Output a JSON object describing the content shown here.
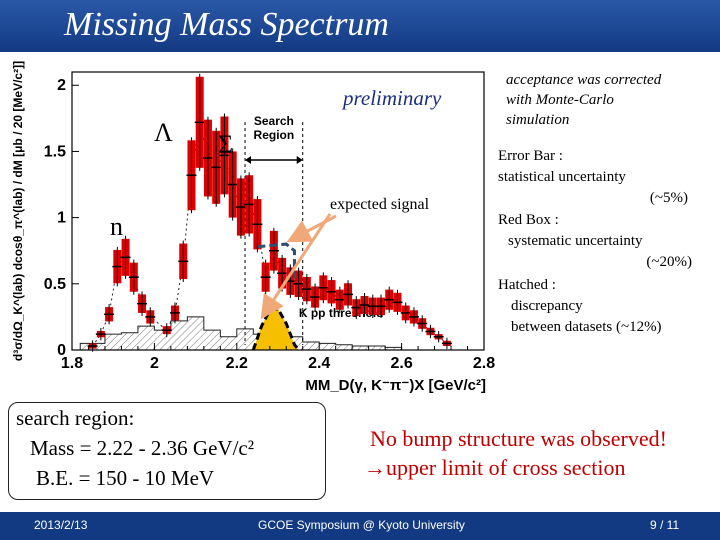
{
  "slide": {
    "title": "Missing Mass Spectrum",
    "footer": {
      "date": "2013/2/13",
      "event": "GCOE Symposium @ Kyoto University",
      "page": "9 / 11"
    }
  },
  "annotations": {
    "preliminary": "preliminary",
    "lambda": "Λ",
    "sigma": "Σ",
    "n": "n",
    "expected_signal": "expected signal",
    "acceptance": [
      "acceptance was corrected",
      "with Monte-Carlo",
      "simulation"
    ],
    "error_bar": [
      "Error Bar :",
      "statistical uncertainty",
      "(~5%)"
    ],
    "red_box": [
      "Red Box :",
      "systematic uncertainty",
      "(~20%)"
    ],
    "hatched": [
      "Hatched :",
      "discrepancy",
      "between datasets (~12%)"
    ]
  },
  "search_region": {
    "heading": "search region:",
    "mass": "Mass = 2.22 - 2.36 GeV/c²",
    "be": "B.E. = 150 - 10 MeV"
  },
  "conclusion": {
    "line1": "No bump structure was observed!",
    "line2": "upper limit of cross section",
    "arrow": "→"
  },
  "colors": {
    "title_bg": "#1f4b96",
    "data_red": "#dd0000",
    "signal_fill": "#f6c000",
    "systematic_box": "#2f4f6f",
    "arrow": "#f0a878",
    "conclusion": "#c00000"
  },
  "chart_data": {
    "type": "scatter",
    "title": "",
    "xlabel": "MM_D(γ, K⁻π⁻)X [GeV/c²]",
    "ylabel": "d³σ/dΩ_K^(lab) dcosθ_π^(lab) / dM [μb / 20 [MeV/c²]]",
    "xlim": [
      1.8,
      2.8
    ],
    "ylim": [
      0,
      2.1
    ],
    "x_ticks": [
      1.8,
      2.0,
      2.2,
      2.4,
      2.6,
      2.8
    ],
    "x_tick_labels": [
      "1.8",
      "2",
      "2.2",
      "2.4",
      "2.6",
      "2.8"
    ],
    "y_ticks": [
      0,
      0.5,
      1,
      1.5,
      2
    ],
    "y_tick_labels": [
      "0",
      "0.5",
      "1",
      "1.5",
      "2"
    ],
    "search_region": {
      "label": [
        "Search",
        "Region"
      ],
      "x_range": [
        2.22,
        2.36
      ]
    },
    "kpp_threshold": {
      "label": "K pp threshold",
      "x": 2.37
    },
    "series": [
      {
        "name": "data",
        "points": [
          {
            "x": 1.85,
            "y": 0.03
          },
          {
            "x": 1.87,
            "y": 0.12
          },
          {
            "x": 1.89,
            "y": 0.27
          },
          {
            "x": 1.91,
            "y": 0.63
          },
          {
            "x": 1.93,
            "y": 0.7
          },
          {
            "x": 1.95,
            "y": 0.55
          },
          {
            "x": 1.97,
            "y": 0.35
          },
          {
            "x": 1.99,
            "y": 0.25
          },
          {
            "x": 2.03,
            "y": 0.15
          },
          {
            "x": 2.05,
            "y": 0.28
          },
          {
            "x": 2.07,
            "y": 0.67
          },
          {
            "x": 2.09,
            "y": 1.32
          },
          {
            "x": 2.11,
            "y": 1.72
          },
          {
            "x": 2.13,
            "y": 1.45
          },
          {
            "x": 2.15,
            "y": 1.38
          },
          {
            "x": 2.17,
            "y": 1.47
          },
          {
            "x": 2.19,
            "y": 1.25
          },
          {
            "x": 2.21,
            "y": 1.08
          },
          {
            "x": 2.23,
            "y": 1.1
          },
          {
            "x": 2.25,
            "y": 0.95
          },
          {
            "x": 2.27,
            "y": 0.55
          },
          {
            "x": 2.29,
            "y": 0.75
          },
          {
            "x": 2.31,
            "y": 0.58
          },
          {
            "x": 2.33,
            "y": 0.52
          },
          {
            "x": 2.35,
            "y": 0.5
          },
          {
            "x": 2.37,
            "y": 0.46
          },
          {
            "x": 2.39,
            "y": 0.4
          },
          {
            "x": 2.41,
            "y": 0.47
          },
          {
            "x": 2.43,
            "y": 0.44
          },
          {
            "x": 2.45,
            "y": 0.38
          },
          {
            "x": 2.47,
            "y": 0.42
          },
          {
            "x": 2.49,
            "y": 0.32
          },
          {
            "x": 2.51,
            "y": 0.34
          },
          {
            "x": 2.53,
            "y": 0.33
          },
          {
            "x": 2.55,
            "y": 0.33
          },
          {
            "x": 2.57,
            "y": 0.38
          },
          {
            "x": 2.59,
            "y": 0.36
          },
          {
            "x": 2.61,
            "y": 0.28
          },
          {
            "x": 2.63,
            "y": 0.25
          },
          {
            "x": 2.65,
            "y": 0.2
          },
          {
            "x": 2.67,
            "y": 0.14
          },
          {
            "x": 2.69,
            "y": 0.1
          },
          {
            "x": 2.71,
            "y": 0.05
          }
        ]
      },
      {
        "name": "expected signal",
        "points": [
          {
            "x": 2.24,
            "y": 0.0
          },
          {
            "x": 2.26,
            "y": 0.18
          },
          {
            "x": 2.28,
            "y": 0.3
          },
          {
            "x": 2.3,
            "y": 0.31
          },
          {
            "x": 2.32,
            "y": 0.2
          },
          {
            "x": 2.34,
            "y": 0.04
          },
          {
            "x": 2.35,
            "y": 0.0
          }
        ]
      },
      {
        "name": "systematic upper box",
        "points": [
          {
            "x": 2.25,
            "y": 0.78
          },
          {
            "x": 2.32,
            "y": 0.8
          },
          {
            "x": 2.34,
            "y": 0.75
          },
          {
            "x": 2.34,
            "y": 0.52
          }
        ]
      },
      {
        "name": "hatched histogram",
        "points": [
          {
            "x": 1.82,
            "y": 0.05
          },
          {
            "x": 1.88,
            "y": 0.12
          },
          {
            "x": 1.92,
            "y": 0.13
          },
          {
            "x": 1.96,
            "y": 0.18
          },
          {
            "x": 2.0,
            "y": 0.15
          },
          {
            "x": 2.04,
            "y": 0.22
          },
          {
            "x": 2.08,
            "y": 0.25
          },
          {
            "x": 2.12,
            "y": 0.15
          },
          {
            "x": 2.16,
            "y": 0.1
          },
          {
            "x": 2.2,
            "y": 0.16
          },
          {
            "x": 2.24,
            "y": 0.12
          },
          {
            "x": 2.28,
            "y": 0.08
          },
          {
            "x": 2.32,
            "y": 0.1
          },
          {
            "x": 2.36,
            "y": 0.06
          },
          {
            "x": 2.4,
            "y": 0.05
          },
          {
            "x": 2.44,
            "y": 0.04
          },
          {
            "x": 2.48,
            "y": 0.03
          },
          {
            "x": 2.52,
            "y": 0.03
          },
          {
            "x": 2.56,
            "y": 0.02
          }
        ]
      }
    ]
  }
}
